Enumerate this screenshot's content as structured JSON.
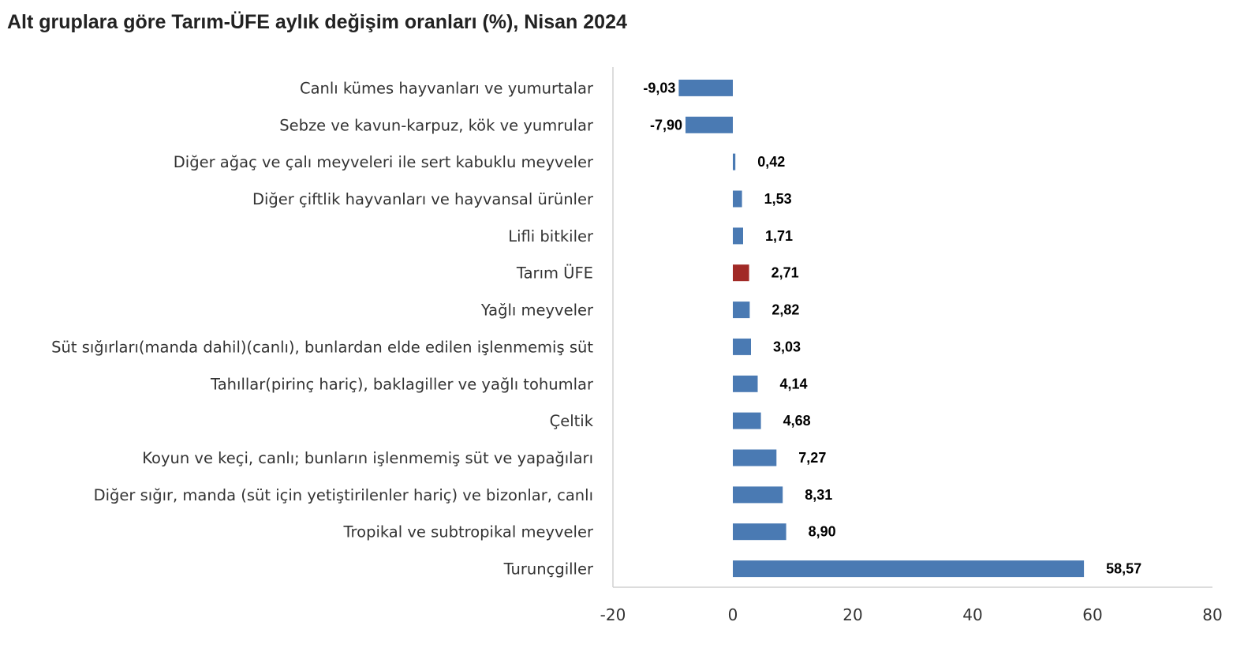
{
  "chart_data": {
    "type": "bar",
    "orientation": "horizontal",
    "title": "Alt gruplara göre Tarım-ÜFE aylık değişim oranları (%), Nisan 2024",
    "categories": [
      "Canlı kümes hayvanları ve yumurtalar",
      "Sebze ve kavun-karpuz, kök ve yumrular",
      "Diğer ağaç ve çalı meyveleri ile sert kabuklu meyveler",
      "Diğer çiftlik hayvanları ve hayvansal ürünler",
      "Lifli bitkiler",
      "Tarım ÜFE",
      "Yağlı meyveler",
      "Süt sığırları(manda dahil)(canlı), bunlardan elde edilen işlenmemiş süt",
      "Tahıllar(pirinç hariç), baklagiller ve yağlı tohumlar",
      "Çeltik",
      "Koyun ve keçi, canlı; bunların işlenmemiş süt ve yapağıları",
      "Diğer sığır, manda (süt için yetiştirilenler hariç) ve bizonlar, canlı",
      "Tropikal ve subtropikal meyveler",
      "Turunçgiller"
    ],
    "values": [
      -9.03,
      -7.9,
      0.42,
      1.53,
      1.71,
      2.71,
      2.82,
      3.03,
      4.14,
      4.68,
      7.27,
      8.31,
      8.9,
      58.57
    ],
    "value_labels": [
      "-9,03",
      "-7,90",
      "0,42",
      "1,53",
      "1,71",
      "2,71",
      "2,82",
      "3,03",
      "4,14",
      "4,68",
      "7,27",
      "8,31",
      "8,90",
      "58,57"
    ],
    "highlight": "Tarım ÜFE",
    "xlim": [
      -20,
      80
    ],
    "xticks": [
      -20,
      0,
      20,
      40,
      60,
      80
    ],
    "grid": false,
    "legend": "none",
    "colors": {
      "bar": "#4a7ab3",
      "highlight": "#a12a26",
      "axis": "#d0d0d0"
    }
  }
}
